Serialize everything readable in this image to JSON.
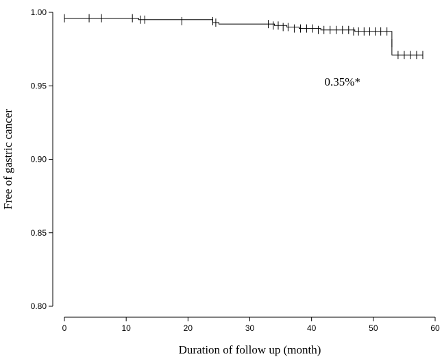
{
  "chart_data": {
    "type": "line",
    "title": "",
    "xlabel": "Duration of follow up (month)",
    "ylabel": "Free of gastric cancer",
    "xlim": [
      0,
      60
    ],
    "ylim": [
      0.8,
      1.0
    ],
    "x_ticks": [
      0,
      10,
      20,
      30,
      40,
      50,
      60
    ],
    "x_tick_labels": [
      "0",
      "10",
      "20",
      "30",
      "40",
      "50",
      "60"
    ],
    "y_ticks": [
      0.8,
      0.85,
      0.9,
      0.95,
      1.0
    ],
    "y_tick_labels": [
      "0.80",
      "0.85",
      "0.90",
      "0.95",
      "1.00"
    ],
    "grid": false,
    "series": [
      {
        "values_step": [
          {
            "x": 0,
            "y": 0.996
          },
          {
            "x": 12,
            "y": 0.995
          },
          {
            "x": 24,
            "y": 0.993
          },
          {
            "x": 25,
            "y": 0.992
          },
          {
            "x": 34,
            "y": 0.991
          },
          {
            "x": 36,
            "y": 0.99
          },
          {
            "x": 38,
            "y": 0.989
          },
          {
            "x": 41.5,
            "y": 0.988
          },
          {
            "x": 47,
            "y": 0.987
          },
          {
            "x": 53,
            "y": 0.971
          },
          {
            "x": 58,
            "y": 0.971
          }
        ],
        "censored": [
          {
            "x": 0,
            "y": 0.996
          },
          {
            "x": 4,
            "y": 0.996
          },
          {
            "x": 6,
            "y": 0.996
          },
          {
            "x": 11,
            "y": 0.996
          },
          {
            "x": 12.3,
            "y": 0.995
          },
          {
            "x": 13,
            "y": 0.995
          },
          {
            "x": 19,
            "y": 0.994
          },
          {
            "x": 24,
            "y": 0.994
          },
          {
            "x": 24.5,
            "y": 0.993
          },
          {
            "x": 33,
            "y": 0.992
          },
          {
            "x": 33.8,
            "y": 0.991
          },
          {
            "x": 34.6,
            "y": 0.991
          },
          {
            "x": 35.4,
            "y": 0.99
          },
          {
            "x": 36.2,
            "y": 0.99
          },
          {
            "x": 37.2,
            "y": 0.989
          },
          {
            "x": 38.2,
            "y": 0.989
          },
          {
            "x": 39.2,
            "y": 0.989
          },
          {
            "x": 40.2,
            "y": 0.989
          },
          {
            "x": 41.1,
            "y": 0.988
          },
          {
            "x": 42,
            "y": 0.988
          },
          {
            "x": 43,
            "y": 0.988
          },
          {
            "x": 44,
            "y": 0.988
          },
          {
            "x": 45,
            "y": 0.988
          },
          {
            "x": 46,
            "y": 0.988
          },
          {
            "x": 46.8,
            "y": 0.987
          },
          {
            "x": 47.6,
            "y": 0.987
          },
          {
            "x": 48.5,
            "y": 0.987
          },
          {
            "x": 49.4,
            "y": 0.987
          },
          {
            "x": 50.3,
            "y": 0.987
          },
          {
            "x": 51.2,
            "y": 0.987
          },
          {
            "x": 52.2,
            "y": 0.987
          },
          {
            "x": 53,
            "y": 0.979
          },
          {
            "x": 54,
            "y": 0.971
          },
          {
            "x": 55,
            "y": 0.971
          },
          {
            "x": 56,
            "y": 0.971
          },
          {
            "x": 57,
            "y": 0.971
          },
          {
            "x": 58,
            "y": 0.971
          }
        ]
      }
    ],
    "annotations": [
      {
        "text": "0.35%*",
        "x": 45,
        "y": 0.953
      }
    ]
  }
}
